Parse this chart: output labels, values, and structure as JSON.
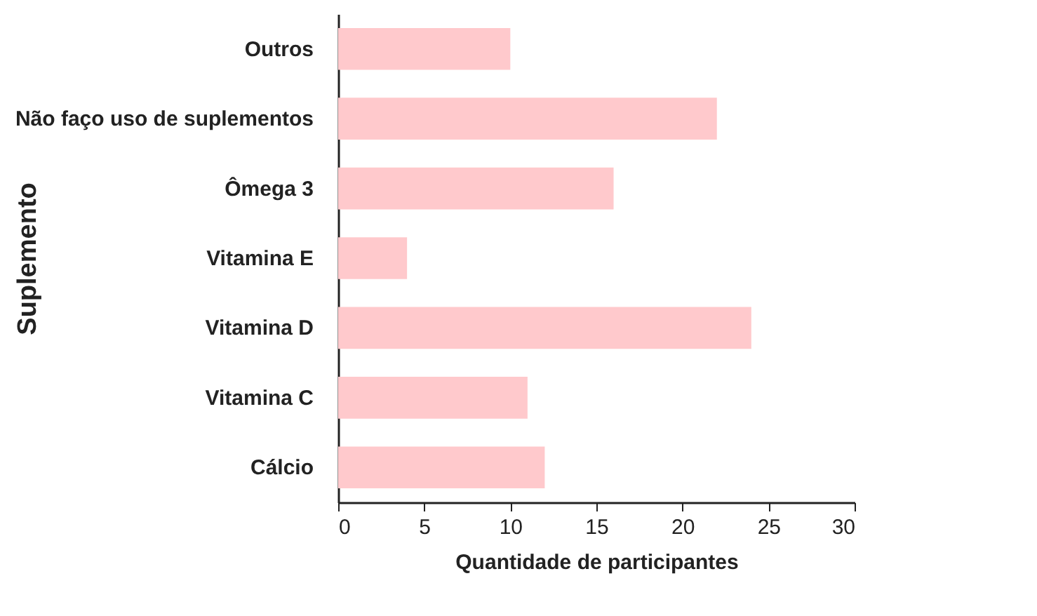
{
  "chart_data": {
    "type": "bar",
    "orientation": "horizontal",
    "xlabel": "Quantidade de participantes",
    "ylabel": "Suplemento",
    "categories": [
      "Outros",
      "Não faço uso de suplementos",
      "Ômega 3",
      "Vitamina E",
      "Vitamina D",
      "Vitamina C",
      "Cálcio"
    ],
    "values": [
      10,
      22,
      16,
      4,
      24,
      11,
      12
    ],
    "color": "#ffc9cc",
    "xlim": [
      0,
      30
    ],
    "xticks": [
      0,
      5,
      10,
      15,
      20,
      25,
      30
    ],
    "grid": false
  }
}
